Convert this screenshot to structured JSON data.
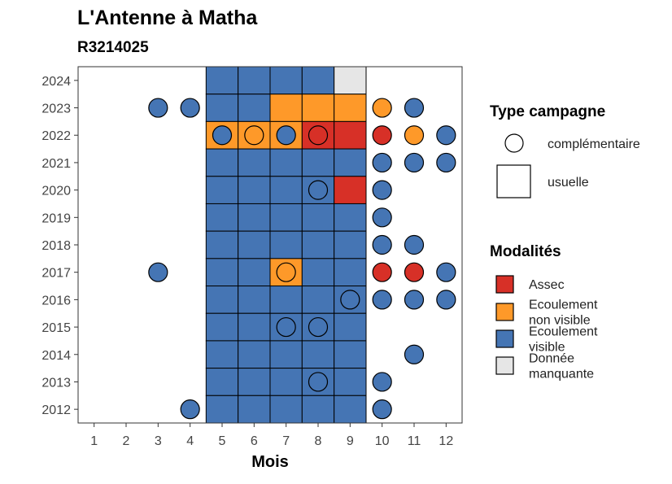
{
  "colors": {
    "Assec": "#d73027",
    "Ecoulement non visible": "#fe9929",
    "Ecoulement visible": "#4575b4",
    "Donnée manquante": "#e6e6e6"
  },
  "chart_data": {
    "type": "heatmap",
    "title": "L'Antenne à Matha",
    "subtitle": "R3214025",
    "xlabel": "Mois",
    "ylabel": "",
    "x_ticks": [
      "1",
      "2",
      "3",
      "4",
      "5",
      "6",
      "7",
      "8",
      "9",
      "10",
      "11",
      "12"
    ],
    "y_ticks": [
      "2012",
      "2013",
      "2014",
      "2015",
      "2016",
      "2017",
      "2018",
      "2019",
      "2020",
      "2021",
      "2022",
      "2023",
      "2024"
    ],
    "xlim": [
      0.5,
      12.5
    ],
    "ylim": [
      2011.5,
      2024.5
    ],
    "grid": false,
    "legend_position": "right",
    "legend": {
      "shape_title": "Type campagne",
      "shape_items": [
        {
          "label": "complémentaire",
          "shape": "circle"
        },
        {
          "label": "usuelle",
          "shape": "square"
        }
      ],
      "fill_title": "Modalités",
      "fill_items": [
        {
          "key": "Assec",
          "lines": [
            "Assec"
          ]
        },
        {
          "key": "Ecoulement non visible",
          "lines": [
            "Ecoulement",
            "non visible"
          ]
        },
        {
          "key": "Ecoulement visible",
          "lines": [
            "Ecoulement",
            "visible"
          ]
        },
        {
          "key": "Donnée manquante",
          "lines": [
            "Donnée",
            "manquante"
          ]
        }
      ]
    },
    "tiles": [
      {
        "year": 2024,
        "month": 5,
        "status": "Ecoulement visible"
      },
      {
        "year": 2024,
        "month": 6,
        "status": "Ecoulement visible"
      },
      {
        "year": 2024,
        "month": 7,
        "status": "Ecoulement visible"
      },
      {
        "year": 2024,
        "month": 8,
        "status": "Ecoulement visible"
      },
      {
        "year": 2024,
        "month": 9,
        "status": "Donnée manquante"
      },
      {
        "year": 2023,
        "month": 5,
        "status": "Ecoulement visible"
      },
      {
        "year": 2023,
        "month": 6,
        "status": "Ecoulement visible"
      },
      {
        "year": 2023,
        "month": 7,
        "status": "Ecoulement non visible"
      },
      {
        "year": 2023,
        "month": 8,
        "status": "Ecoulement non visible"
      },
      {
        "year": 2023,
        "month": 9,
        "status": "Ecoulement non visible"
      },
      {
        "year": 2022,
        "month": 5,
        "status": "Ecoulement non visible"
      },
      {
        "year": 2022,
        "month": 6,
        "status": "Ecoulement non visible"
      },
      {
        "year": 2022,
        "month": 7,
        "status": "Ecoulement non visible"
      },
      {
        "year": 2022,
        "month": 8,
        "status": "Assec"
      },
      {
        "year": 2022,
        "month": 9,
        "status": "Assec"
      },
      {
        "year": 2021,
        "month": 5,
        "status": "Ecoulement visible"
      },
      {
        "year": 2021,
        "month": 6,
        "status": "Ecoulement visible"
      },
      {
        "year": 2021,
        "month": 7,
        "status": "Ecoulement visible"
      },
      {
        "year": 2021,
        "month": 8,
        "status": "Ecoulement visible"
      },
      {
        "year": 2021,
        "month": 9,
        "status": "Ecoulement visible"
      },
      {
        "year": 2020,
        "month": 5,
        "status": "Ecoulement visible"
      },
      {
        "year": 2020,
        "month": 6,
        "status": "Ecoulement visible"
      },
      {
        "year": 2020,
        "month": 7,
        "status": "Ecoulement visible"
      },
      {
        "year": 2020,
        "month": 8,
        "status": "Ecoulement visible"
      },
      {
        "year": 2020,
        "month": 9,
        "status": "Assec"
      },
      {
        "year": 2019,
        "month": 5,
        "status": "Ecoulement visible"
      },
      {
        "year": 2019,
        "month": 6,
        "status": "Ecoulement visible"
      },
      {
        "year": 2019,
        "month": 7,
        "status": "Ecoulement visible"
      },
      {
        "year": 2019,
        "month": 8,
        "status": "Ecoulement visible"
      },
      {
        "year": 2019,
        "month": 9,
        "status": "Ecoulement visible"
      },
      {
        "year": 2018,
        "month": 5,
        "status": "Ecoulement visible"
      },
      {
        "year": 2018,
        "month": 6,
        "status": "Ecoulement visible"
      },
      {
        "year": 2018,
        "month": 7,
        "status": "Ecoulement visible"
      },
      {
        "year": 2018,
        "month": 8,
        "status": "Ecoulement visible"
      },
      {
        "year": 2018,
        "month": 9,
        "status": "Ecoulement visible"
      },
      {
        "year": 2017,
        "month": 5,
        "status": "Ecoulement visible"
      },
      {
        "year": 2017,
        "month": 6,
        "status": "Ecoulement visible"
      },
      {
        "year": 2017,
        "month": 7,
        "status": "Ecoulement non visible"
      },
      {
        "year": 2017,
        "month": 8,
        "status": "Ecoulement visible"
      },
      {
        "year": 2017,
        "month": 9,
        "status": "Ecoulement visible"
      },
      {
        "year": 2016,
        "month": 5,
        "status": "Ecoulement visible"
      },
      {
        "year": 2016,
        "month": 6,
        "status": "Ecoulement visible"
      },
      {
        "year": 2016,
        "month": 7,
        "status": "Ecoulement visible"
      },
      {
        "year": 2016,
        "month": 8,
        "status": "Ecoulement visible"
      },
      {
        "year": 2016,
        "month": 9,
        "status": "Ecoulement visible"
      },
      {
        "year": 2015,
        "month": 5,
        "status": "Ecoulement visible"
      },
      {
        "year": 2015,
        "month": 6,
        "status": "Ecoulement visible"
      },
      {
        "year": 2015,
        "month": 7,
        "status": "Ecoulement visible"
      },
      {
        "year": 2015,
        "month": 8,
        "status": "Ecoulement visible"
      },
      {
        "year": 2015,
        "month": 9,
        "status": "Ecoulement visible"
      },
      {
        "year": 2014,
        "month": 5,
        "status": "Ecoulement visible"
      },
      {
        "year": 2014,
        "month": 6,
        "status": "Ecoulement visible"
      },
      {
        "year": 2014,
        "month": 7,
        "status": "Ecoulement visible"
      },
      {
        "year": 2014,
        "month": 8,
        "status": "Ecoulement visible"
      },
      {
        "year": 2014,
        "month": 9,
        "status": "Ecoulement visible"
      },
      {
        "year": 2013,
        "month": 5,
        "status": "Ecoulement visible"
      },
      {
        "year": 2013,
        "month": 6,
        "status": "Ecoulement visible"
      },
      {
        "year": 2013,
        "month": 7,
        "status": "Ecoulement visible"
      },
      {
        "year": 2013,
        "month": 8,
        "status": "Ecoulement visible"
      },
      {
        "year": 2013,
        "month": 9,
        "status": "Ecoulement visible"
      },
      {
        "year": 2012,
        "month": 5,
        "status": "Ecoulement visible"
      },
      {
        "year": 2012,
        "month": 6,
        "status": "Ecoulement visible"
      },
      {
        "year": 2012,
        "month": 7,
        "status": "Ecoulement visible"
      },
      {
        "year": 2012,
        "month": 8,
        "status": "Ecoulement visible"
      },
      {
        "year": 2012,
        "month": 9,
        "status": "Ecoulement visible"
      }
    ],
    "points": [
      {
        "year": 2023,
        "month": 3,
        "status": "Ecoulement visible"
      },
      {
        "year": 2023,
        "month": 4,
        "status": "Ecoulement visible"
      },
      {
        "year": 2023,
        "month": 10,
        "status": "Ecoulement non visible"
      },
      {
        "year": 2023,
        "month": 11,
        "status": "Ecoulement visible"
      },
      {
        "year": 2022,
        "month": 5,
        "status": "Ecoulement visible"
      },
      {
        "year": 2022,
        "month": 6,
        "status": "Ecoulement non visible"
      },
      {
        "year": 2022,
        "month": 7,
        "status": "Ecoulement visible"
      },
      {
        "year": 2022,
        "month": 8,
        "status": "Assec"
      },
      {
        "year": 2022,
        "month": 10,
        "status": "Assec"
      },
      {
        "year": 2022,
        "month": 11,
        "status": "Ecoulement non visible"
      },
      {
        "year": 2022,
        "month": 12,
        "status": "Ecoulement visible"
      },
      {
        "year": 2021,
        "month": 10,
        "status": "Ecoulement visible"
      },
      {
        "year": 2021,
        "month": 11,
        "status": "Ecoulement visible"
      },
      {
        "year": 2021,
        "month": 12,
        "status": "Ecoulement visible"
      },
      {
        "year": 2020,
        "month": 8,
        "status": "Ecoulement visible"
      },
      {
        "year": 2020,
        "month": 10,
        "status": "Ecoulement visible"
      },
      {
        "year": 2019,
        "month": 10,
        "status": "Ecoulement visible"
      },
      {
        "year": 2018,
        "month": 10,
        "status": "Ecoulement visible"
      },
      {
        "year": 2018,
        "month": 11,
        "status": "Ecoulement visible"
      },
      {
        "year": 2017,
        "month": 3,
        "status": "Ecoulement visible"
      },
      {
        "year": 2017,
        "month": 7,
        "status": "Ecoulement non visible"
      },
      {
        "year": 2017,
        "month": 10,
        "status": "Assec"
      },
      {
        "year": 2017,
        "month": 11,
        "status": "Assec"
      },
      {
        "year": 2017,
        "month": 12,
        "status": "Ecoulement visible"
      },
      {
        "year": 2016,
        "month": 9,
        "status": "Ecoulement visible"
      },
      {
        "year": 2016,
        "month": 10,
        "status": "Ecoulement visible"
      },
      {
        "year": 2016,
        "month": 11,
        "status": "Ecoulement visible"
      },
      {
        "year": 2016,
        "month": 12,
        "status": "Ecoulement visible"
      },
      {
        "year": 2015,
        "month": 7,
        "status": "Ecoulement visible"
      },
      {
        "year": 2015,
        "month": 8,
        "status": "Ecoulement visible"
      },
      {
        "year": 2014,
        "month": 11,
        "status": "Ecoulement visible"
      },
      {
        "year": 2013,
        "month": 8,
        "status": "Ecoulement visible"
      },
      {
        "year": 2013,
        "month": 10,
        "status": "Ecoulement visible"
      },
      {
        "year": 2012,
        "month": 4,
        "status": "Ecoulement visible"
      },
      {
        "year": 2012,
        "month": 10,
        "status": "Ecoulement visible"
      }
    ]
  }
}
